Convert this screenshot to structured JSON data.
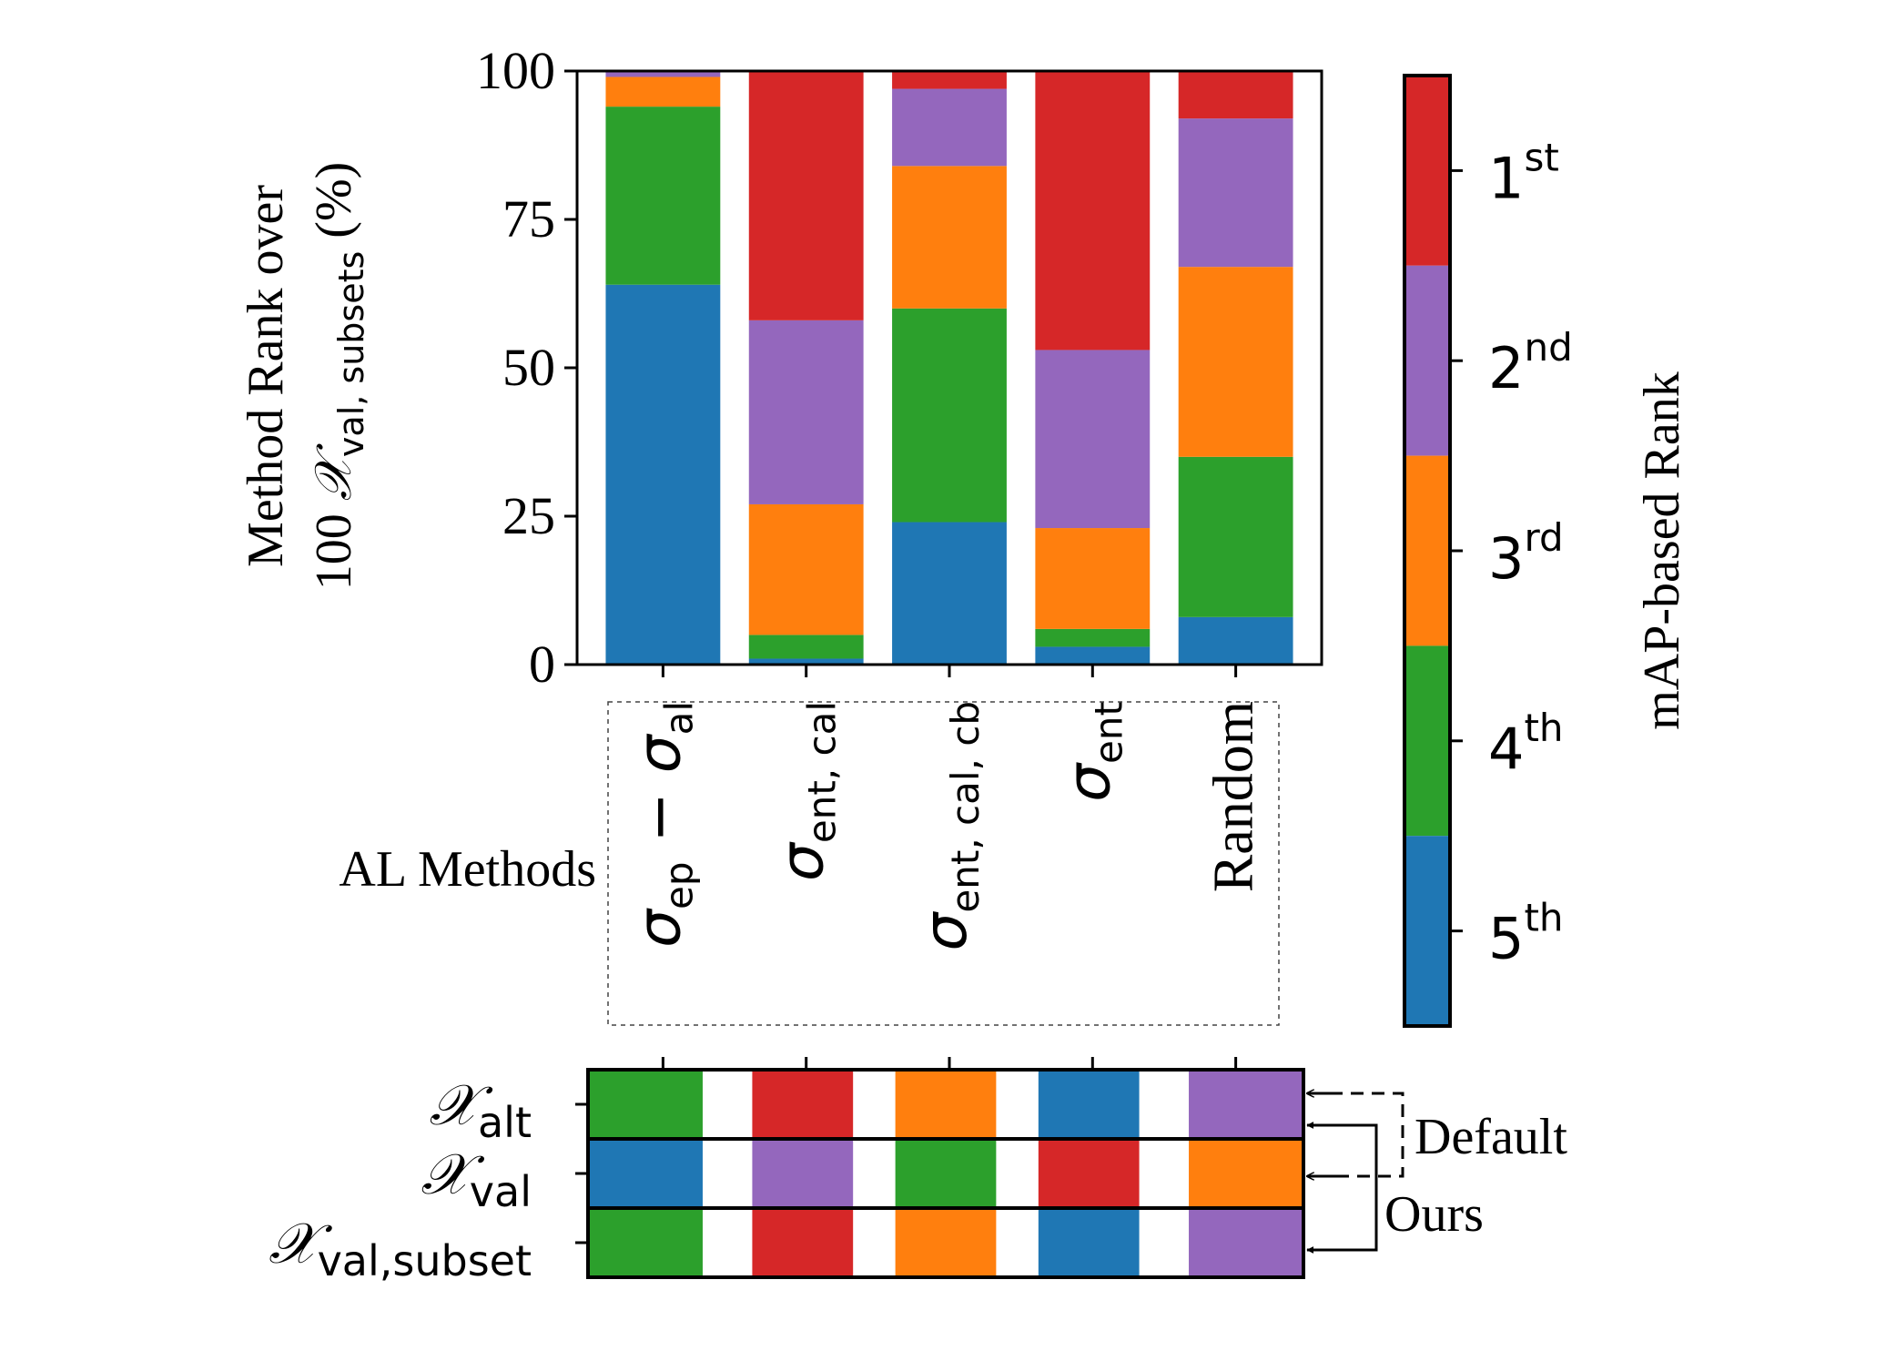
{
  "chart_data": {
    "type": "bar",
    "stacked": true,
    "ylabel_line1": "Method Rank over",
    "ylabel_line2_prefix": "100 ",
    "ylabel_line2_symbol": "𝒳",
    "ylabel_line2_sub": "val, subsets",
    "ylabel_line2_suffix": " (%)",
    "xlabel": "AL Methods",
    "ylim": [
      0,
      100
    ],
    "yticks": [
      "0",
      "25",
      "50",
      "75",
      "100"
    ],
    "ytick_values": [
      0,
      25,
      50,
      75,
      100
    ],
    "categories": [
      {
        "main": "σ",
        "sub": "ep",
        "rest": " − ",
        "main2": "σ",
        "sub2": "al"
      },
      {
        "main": "σ",
        "sub": "ent, cal",
        "rest": "",
        "main2": "",
        "sub2": ""
      },
      {
        "main": "σ",
        "sub": "ent, cal, cb",
        "rest": "",
        "main2": "",
        "sub2": ""
      },
      {
        "main": "σ",
        "sub": "ent",
        "rest": "",
        "main2": "",
        "sub2": ""
      },
      {
        "main": "Random",
        "sub": "",
        "rest": "",
        "main2": "",
        "sub2": ""
      }
    ],
    "series": [
      {
        "rank": "5th",
        "color": "#1f77b4",
        "values": [
          64,
          1,
          24,
          3,
          8
        ]
      },
      {
        "rank": "4th",
        "color": "#2ca02c",
        "values": [
          30,
          4,
          36,
          3,
          27
        ]
      },
      {
        "rank": "3rd",
        "color": "#ff7f0e",
        "values": [
          5,
          22,
          24,
          17,
          32
        ]
      },
      {
        "rank": "2nd",
        "color": "#9467bd",
        "values": [
          1,
          31,
          13,
          30,
          25
        ]
      },
      {
        "rank": "1st",
        "color": "#d62728",
        "values": [
          0,
          42,
          3,
          47,
          8
        ]
      }
    ],
    "colorbar": {
      "label": "mAP-based Rank",
      "ticks": [
        {
          "num": "1",
          "sup": "st",
          "color": "#d62728"
        },
        {
          "num": "2",
          "sup": "nd",
          "color": "#9467bd"
        },
        {
          "num": "3",
          "sup": "rd",
          "color": "#ff7f0e"
        },
        {
          "num": "4",
          "sup": "th",
          "color": "#2ca02c"
        },
        {
          "num": "5",
          "sup": "th",
          "color": "#1f77b4"
        }
      ]
    },
    "rank_table": {
      "rows": [
        {
          "symbol": "𝒳",
          "sub": "alt",
          "ranks": [
            "4th",
            "1st",
            "3rd",
            "5th",
            "2nd"
          ]
        },
        {
          "symbol": "𝒳",
          "sub": "val",
          "ranks": [
            "5th",
            "2nd",
            "4th",
            "1st",
            "3rd"
          ]
        },
        {
          "symbol": "𝒳",
          "sub": "val,subset",
          "ranks": [
            "4th",
            "1st",
            "3rd",
            "5th",
            "2nd"
          ]
        }
      ],
      "annotations": [
        {
          "label": "Default",
          "style": "dashed"
        },
        {
          "label": "Ours",
          "style": "solid"
        }
      ]
    }
  }
}
